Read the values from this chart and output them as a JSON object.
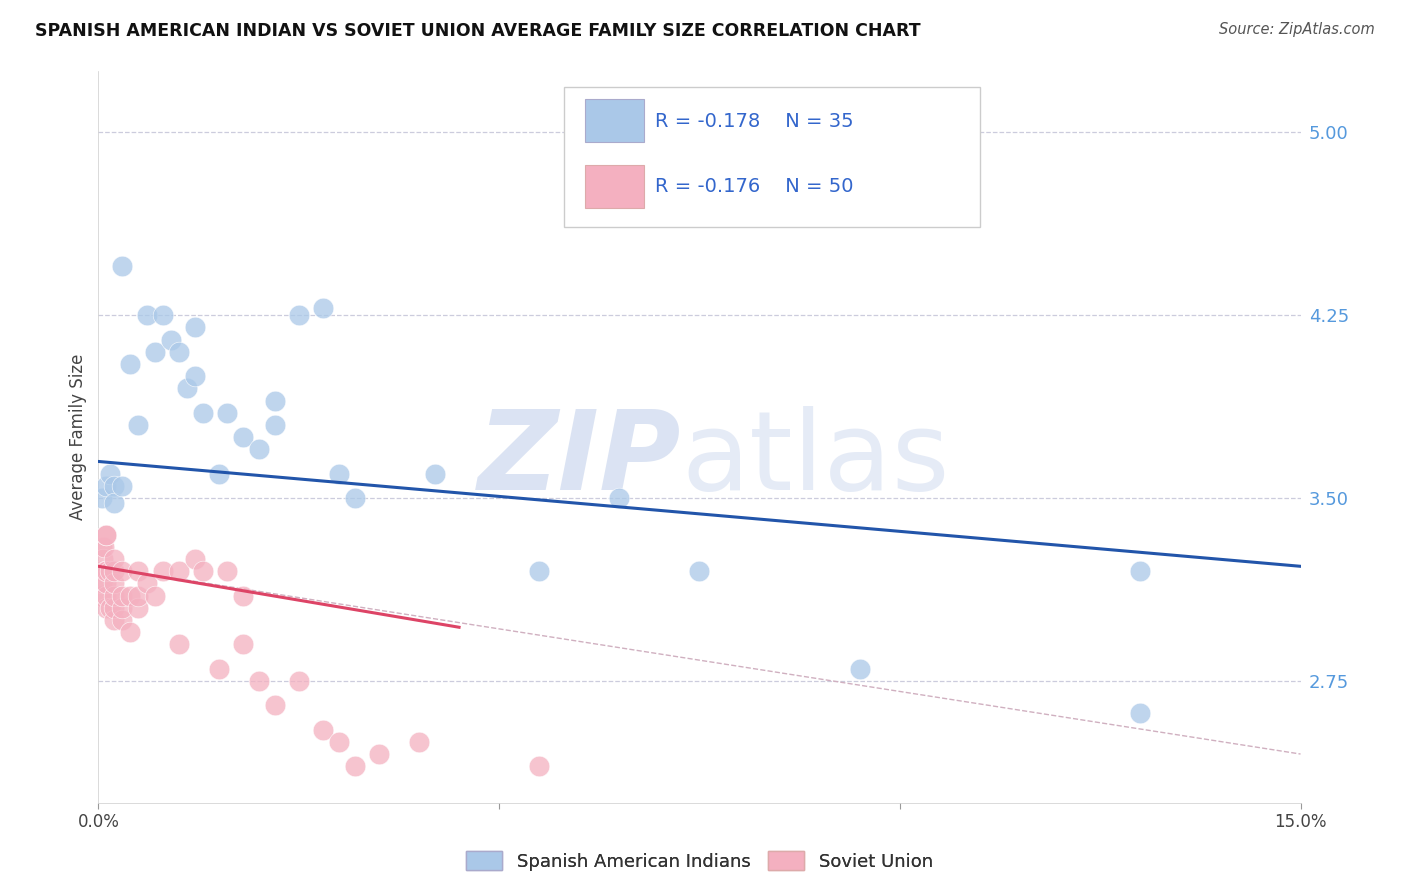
{
  "title": "SPANISH AMERICAN INDIAN VS SOVIET UNION AVERAGE FAMILY SIZE CORRELATION CHART",
  "source": "Source: ZipAtlas.com",
  "ylabel": "Average Family Size",
  "yticks": [
    2.75,
    3.5,
    4.25,
    5.0
  ],
  "xlim": [
    0.0,
    0.15
  ],
  "ylim": [
    2.25,
    5.25
  ],
  "blue_color": "#aac8e8",
  "pink_color": "#f4b0c0",
  "trendline_blue": "#2255aa",
  "trendline_pink": "#dd4466",
  "trendline_dashed_color": "#d0b0c0",
  "blue_scatter_x": [
    0.0005,
    0.001,
    0.0015,
    0.002,
    0.002,
    0.003,
    0.003,
    0.004,
    0.005,
    0.006,
    0.007,
    0.008,
    0.009,
    0.01,
    0.011,
    0.012,
    0.012,
    0.013,
    0.015,
    0.016,
    0.018,
    0.02,
    0.022,
    0.022,
    0.025,
    0.028,
    0.03,
    0.032,
    0.042,
    0.055,
    0.065,
    0.075,
    0.095,
    0.13,
    0.13
  ],
  "blue_scatter_y": [
    3.5,
    3.55,
    3.6,
    3.55,
    3.48,
    3.55,
    4.45,
    4.05,
    3.8,
    4.25,
    4.1,
    4.25,
    4.15,
    4.1,
    3.95,
    4.0,
    4.2,
    3.85,
    3.6,
    3.85,
    3.75,
    3.7,
    3.9,
    3.8,
    4.25,
    4.28,
    3.6,
    3.5,
    3.6,
    3.2,
    3.5,
    3.2,
    2.8,
    3.2,
    2.62
  ],
  "pink_scatter_x": [
    0.0002,
    0.0003,
    0.0004,
    0.0005,
    0.0006,
    0.0007,
    0.0008,
    0.0009,
    0.001,
    0.001,
    0.001,
    0.001,
    0.001,
    0.0015,
    0.0015,
    0.002,
    0.002,
    0.002,
    0.002,
    0.002,
    0.002,
    0.003,
    0.003,
    0.003,
    0.003,
    0.004,
    0.004,
    0.005,
    0.005,
    0.005,
    0.006,
    0.007,
    0.008,
    0.01,
    0.01,
    0.012,
    0.013,
    0.015,
    0.016,
    0.018,
    0.018,
    0.02,
    0.022,
    0.025,
    0.028,
    0.03,
    0.032,
    0.035,
    0.04,
    0.055
  ],
  "pink_scatter_y": [
    3.1,
    3.2,
    3.3,
    3.15,
    3.25,
    3.3,
    3.2,
    3.35,
    3.05,
    3.1,
    3.15,
    3.2,
    3.35,
    3.05,
    3.2,
    3.0,
    3.05,
    3.1,
    3.15,
    3.2,
    3.25,
    3.0,
    3.05,
    3.1,
    3.2,
    2.95,
    3.1,
    3.05,
    3.1,
    3.2,
    3.15,
    3.1,
    3.2,
    2.9,
    3.2,
    3.25,
    3.2,
    2.8,
    3.2,
    2.9,
    3.1,
    2.75,
    2.65,
    2.75,
    2.55,
    2.5,
    2.4,
    2.45,
    2.5,
    2.4
  ],
  "blue_trend_x": [
    0.0,
    0.15
  ],
  "blue_trend_y": [
    3.65,
    3.22
  ],
  "pink_trend_x": [
    0.0,
    0.045
  ],
  "pink_trend_y": [
    3.22,
    2.97
  ],
  "dashed_trend_x": [
    0.0,
    0.15
  ],
  "dashed_trend_y": [
    3.22,
    2.45
  ],
  "watermark_zip": "ZIP",
  "watermark_atlas": "atlas",
  "background_color": "#ffffff",
  "grid_color": "#ccccdd"
}
